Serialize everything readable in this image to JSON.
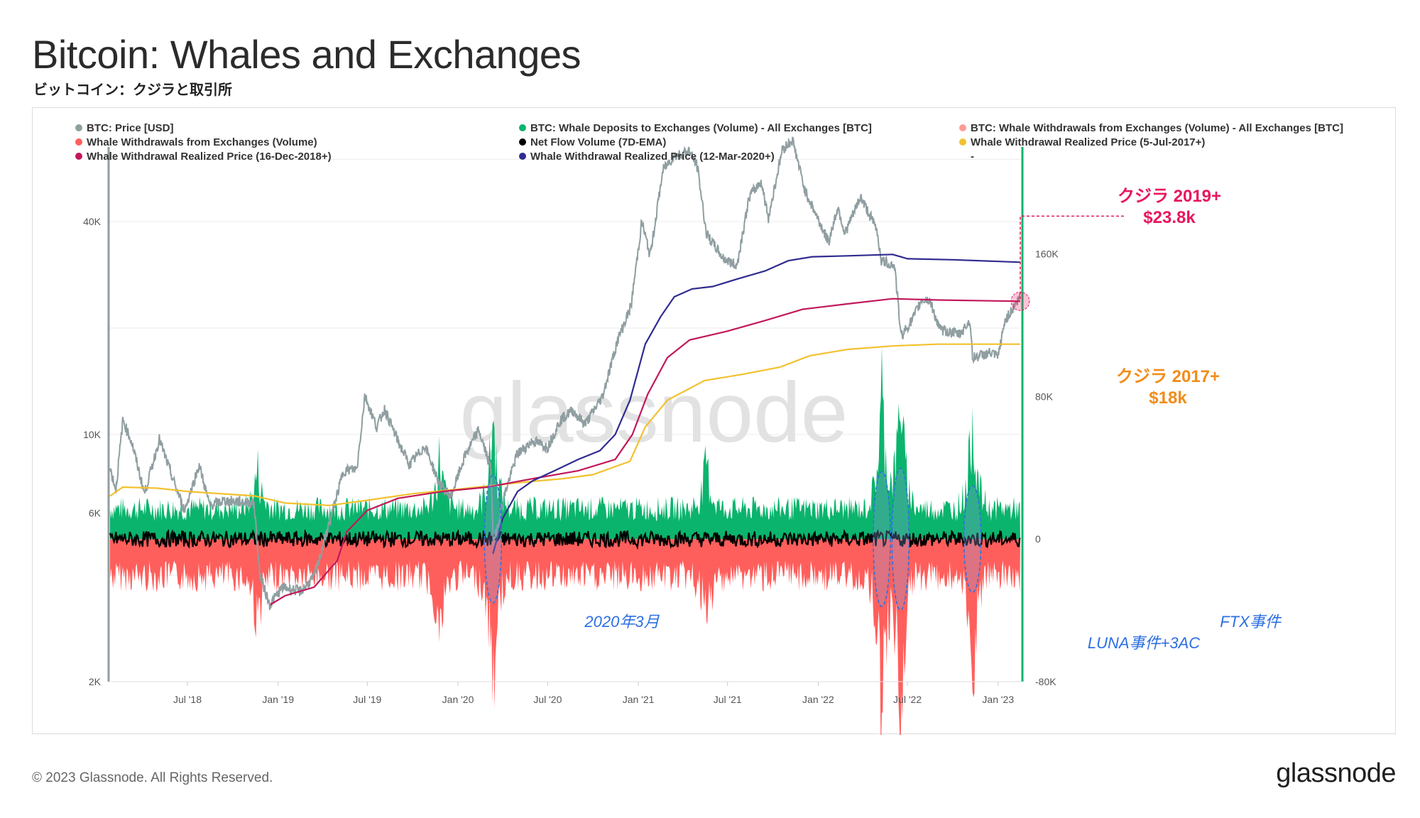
{
  "header": {
    "title": "Bitcoin: Whales and Exchanges",
    "subtitle": "ビットコイン：クジラと取引所"
  },
  "footer": {
    "copyright": "© 2023 Glassnode. All Rights Reserved.",
    "logo": "glassnode"
  },
  "watermark": "glassnode",
  "colors": {
    "price": "#8f9ea1",
    "deposits": "#0bb46d",
    "withdrawals": "#ff5f5c",
    "netflow": "#000000",
    "rp2017": "#f2c12e",
    "rp2018": "#c2185b",
    "rp2020": "#2f2b8f",
    "annotation_red": "#e8175d",
    "annotation_orange": "#f28c1a",
    "annotation_blue": "#2d6fe0"
  },
  "chart_data": {
    "type": "line",
    "legend_position": "top",
    "grid": true,
    "legend": [
      {
        "label": "BTC: Price [USD]",
        "color": "#8f9ea1",
        "muted": false
      },
      {
        "label": "BTC: Whale Deposits to Exchanges (Volume) - All Exchanges [BTC]",
        "color": "#0bb46d",
        "muted": false
      },
      {
        "label": "BTC: Whale Withdrawals from Exchanges (Volume) - All Exchanges [BTC]",
        "color": "#ff9b99",
        "muted": true
      },
      {
        "label": "Whale Withdrawals from Exchanges (Volume)",
        "color": "#ff5f5c",
        "muted": false
      },
      {
        "label": "Net Flow Volume (7D-EMA)",
        "color": "#000000",
        "muted": false
      },
      {
        "label": "Whale Withdrawal Realized Price (5-Jul-2017+)",
        "color": "#f2c12e",
        "muted": false
      },
      {
        "label": "Whale Withdrawal Realized Price (16-Dec-2018+)",
        "color": "#c2185b",
        "muted": false
      },
      {
        "label": "Whale Withdrawal Realized Price (12-Mar-2020+)",
        "color": "#2f2b8f",
        "muted": false
      },
      {
        "label": "-",
        "color": null,
        "muted": true
      }
    ],
    "x_ticks": [
      "Jul '18",
      "Jan '19",
      "Jul '19",
      "Jan '20",
      "Jul '20",
      "Jan '21",
      "Jul '21",
      "Jan '22",
      "Jul '22",
      "Jan '23"
    ],
    "x_range": [
      "2018-01-25",
      "2023-02-15"
    ],
    "y_left": {
      "scale": "log",
      "ticks": [
        "2K",
        "6K",
        "10K",
        "40K"
      ],
      "range": [
        2000,
        65000
      ]
    },
    "y_right": {
      "scale": "linear",
      "ticks": [
        "-80K",
        "0",
        "80K",
        "160K"
      ],
      "range": [
        -80000,
        220000
      ]
    },
    "series": [
      {
        "name": "BTC: Price [USD]",
        "axis": "left",
        "color": "#8f9ea1",
        "points": [
          [
            "2018-01-25",
            8000
          ],
          [
            "2018-02-06",
            7000
          ],
          [
            "2018-02-20",
            11000
          ],
          [
            "2018-03-10",
            9500
          ],
          [
            "2018-04-05",
            6800
          ],
          [
            "2018-05-05",
            9700
          ],
          [
            "2018-06-01",
            7500
          ],
          [
            "2018-06-25",
            6100
          ],
          [
            "2018-07-25",
            8200
          ],
          [
            "2018-08-15",
            6300
          ],
          [
            "2018-09-15",
            6500
          ],
          [
            "2018-10-15",
            6450
          ],
          [
            "2018-11-13",
            6400
          ],
          [
            "2018-11-25",
            4000
          ],
          [
            "2018-12-15",
            3300
          ],
          [
            "2019-01-10",
            3700
          ],
          [
            "2019-02-15",
            3600
          ],
          [
            "2019-03-15",
            3950
          ],
          [
            "2019-04-05",
            5000
          ],
          [
            "2019-05-14",
            7900
          ],
          [
            "2019-06-10",
            8000
          ],
          [
            "2019-06-26",
            12900
          ],
          [
            "2019-07-20",
            10500
          ],
          [
            "2019-08-05",
            11800
          ],
          [
            "2019-09-01",
            9600
          ],
          [
            "2019-09-25",
            8200
          ],
          [
            "2019-10-26",
            9300
          ],
          [
            "2019-11-25",
            7200
          ],
          [
            "2019-12-18",
            6700
          ],
          [
            "2020-01-15",
            8700
          ],
          [
            "2020-02-12",
            10300
          ],
          [
            "2020-03-08",
            8000
          ],
          [
            "2020-03-13",
            4900
          ],
          [
            "2020-04-05",
            6800
          ],
          [
            "2020-04-30",
            8800
          ],
          [
            "2020-06-01",
            9600
          ],
          [
            "2020-07-01",
            9200
          ],
          [
            "2020-07-27",
            11000
          ],
          [
            "2020-08-20",
            11700
          ],
          [
            "2020-09-15",
            10700
          ],
          [
            "2020-10-20",
            12800
          ],
          [
            "2020-11-20",
            18500
          ],
          [
            "2020-12-17",
            23000
          ],
          [
            "2021-01-08",
            40000
          ],
          [
            "2021-01-25",
            32000
          ],
          [
            "2021-02-20",
            56000
          ],
          [
            "2021-03-13",
            61000
          ],
          [
            "2021-04-14",
            63500
          ],
          [
            "2021-05-01",
            57000
          ],
          [
            "2021-05-19",
            37000
          ],
          [
            "2021-06-22",
            31500
          ],
          [
            "2021-07-20",
            30000
          ],
          [
            "2021-08-14",
            47000
          ],
          [
            "2021-09-07",
            52000
          ],
          [
            "2021-09-22",
            41000
          ],
          [
            "2021-10-20",
            64000
          ],
          [
            "2021-11-10",
            68000
          ],
          [
            "2021-12-05",
            49000
          ],
          [
            "2022-01-22",
            35000
          ],
          [
            "2022-02-10",
            44000
          ],
          [
            "2022-02-24",
            37000
          ],
          [
            "2022-03-28",
            47000
          ],
          [
            "2022-04-30",
            38000
          ],
          [
            "2022-05-09",
            31000
          ],
          [
            "2022-06-05",
            30000
          ],
          [
            "2022-06-18",
            19000
          ],
          [
            "2022-07-10",
            21000
          ],
          [
            "2022-07-30",
            24000
          ],
          [
            "2022-08-15",
            24000
          ],
          [
            "2022-09-05",
            19800
          ],
          [
            "2022-10-15",
            19200
          ],
          [
            "2022-11-05",
            21000
          ],
          [
            "2022-11-10",
            16500
          ],
          [
            "2022-12-15",
            17000
          ],
          [
            "2023-01-01",
            16600
          ],
          [
            "2023-01-15",
            21000
          ],
          [
            "2023-02-15",
            24500
          ]
        ]
      },
      {
        "name": "Whale Withdrawal Realized Price (5-Jul-2017+)",
        "axis": "left",
        "color": "#f2c12e",
        "points": [
          [
            "2018-01-25",
            6700
          ],
          [
            "2018-02-20",
            7100
          ],
          [
            "2018-05-01",
            7050
          ],
          [
            "2018-07-01",
            6900
          ],
          [
            "2018-11-15",
            6700
          ],
          [
            "2019-01-15",
            6400
          ],
          [
            "2019-04-15",
            6300
          ],
          [
            "2019-06-25",
            6500
          ],
          [
            "2019-10-01",
            6800
          ],
          [
            "2020-01-01",
            7000
          ],
          [
            "2020-05-01",
            7300
          ],
          [
            "2020-08-01",
            7500
          ],
          [
            "2020-10-01",
            7700
          ],
          [
            "2020-12-15",
            8400
          ],
          [
            "2021-01-15",
            10500
          ],
          [
            "2021-03-01",
            12500
          ],
          [
            "2021-05-15",
            14200
          ],
          [
            "2021-08-01",
            14800
          ],
          [
            "2021-10-15",
            15500
          ],
          [
            "2021-12-15",
            16700
          ],
          [
            "2022-03-01",
            17400
          ],
          [
            "2022-06-01",
            17800
          ],
          [
            "2022-09-01",
            18000
          ],
          [
            "2023-02-15",
            18000
          ]
        ]
      },
      {
        "name": "Whale Withdrawal Realized Price (16-Dec-2018+)",
        "axis": "left",
        "color": "#c2185b",
        "points": [
          [
            "2018-12-16",
            3300
          ],
          [
            "2019-01-15",
            3500
          ],
          [
            "2019-03-15",
            3700
          ],
          [
            "2019-05-01",
            4400
          ],
          [
            "2019-05-20",
            5300
          ],
          [
            "2019-07-01",
            6100
          ],
          [
            "2019-09-01",
            6600
          ],
          [
            "2019-12-01",
            6900
          ],
          [
            "2020-03-01",
            7100
          ],
          [
            "2020-06-01",
            7500
          ],
          [
            "2020-09-01",
            7900
          ],
          [
            "2020-11-15",
            8500
          ],
          [
            "2020-12-20",
            10000
          ],
          [
            "2021-01-20",
            13000
          ],
          [
            "2021-03-01",
            16500
          ],
          [
            "2021-04-15",
            18500
          ],
          [
            "2021-07-01",
            19600
          ],
          [
            "2021-09-15",
            21000
          ],
          [
            "2021-12-01",
            22600
          ],
          [
            "2022-03-01",
            23400
          ],
          [
            "2022-06-01",
            24200
          ],
          [
            "2022-09-01",
            24000
          ],
          [
            "2023-02-15",
            23800
          ]
        ]
      },
      {
        "name": "Whale Withdrawal Realized Price (12-Mar-2020+)",
        "axis": "left",
        "color": "#2f2b8f",
        "points": [
          [
            "2020-03-12",
            4600
          ],
          [
            "2020-04-01",
            5800
          ],
          [
            "2020-05-01",
            6900
          ],
          [
            "2020-06-01",
            7400
          ],
          [
            "2020-07-15",
            7900
          ],
          [
            "2020-09-01",
            8500
          ],
          [
            "2020-10-15",
            9000
          ],
          [
            "2020-11-15",
            10000
          ],
          [
            "2020-12-15",
            12500
          ],
          [
            "2021-01-15",
            18000
          ],
          [
            "2021-02-15",
            21500
          ],
          [
            "2021-03-15",
            24500
          ],
          [
            "2021-04-20",
            25800
          ],
          [
            "2021-06-01",
            26200
          ],
          [
            "2021-07-20",
            27500
          ],
          [
            "2021-09-15",
            29000
          ],
          [
            "2021-11-01",
            31000
          ],
          [
            "2021-12-20",
            31800
          ],
          [
            "2022-03-01",
            32000
          ],
          [
            "2022-06-01",
            32300
          ],
          [
            "2022-07-01",
            31400
          ],
          [
            "2022-10-01",
            31200
          ],
          [
            "2023-02-15",
            30700
          ]
        ]
      }
    ]
  },
  "annotations": {
    "whale2019": {
      "line1": "クジラ 2019+",
      "line2": "$23.8k"
    },
    "whale2017": {
      "line1": "クジラ 2017+",
      "line2": "$18k"
    },
    "march2020": "2020年3月",
    "luna": "LUNA事件+3AC",
    "ftx": "FTX事件"
  }
}
